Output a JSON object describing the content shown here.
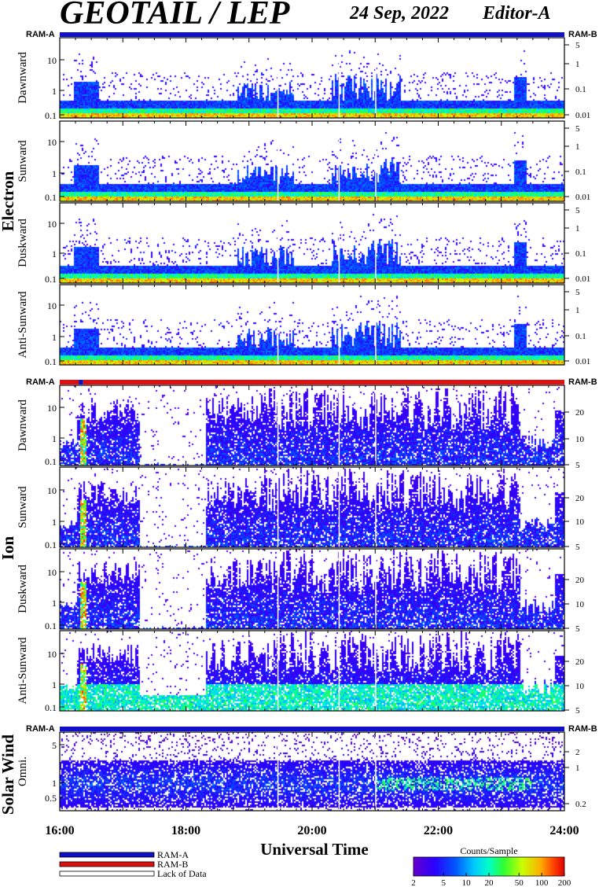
{
  "header": {
    "title": "GEOTAIL / LEP",
    "date": "24 Sep, 2022",
    "editor": "Editor-A"
  },
  "colors": {
    "ram_a": "#1010c8",
    "ram_b": "#e01010",
    "lack": "#ffffff"
  },
  "chart_data": {
    "type": "heatmap",
    "x_axis": {
      "label": "Universal Time",
      "ticks": [
        "16:00",
        "18:00",
        "20:00",
        "22:00",
        "24:00"
      ],
      "range_hours": [
        16,
        24
      ]
    },
    "groups": [
      {
        "name": "Electron",
        "mode_left": "RAM-A",
        "mode_right": "RAM-B",
        "mode_bar": [
          {
            "from": 16,
            "to": 24,
            "mode": "RAM-A"
          }
        ],
        "panels": [
          {
            "label": "Dawnward",
            "left_ticks": [
              "10",
              "1",
              "0.1"
            ],
            "right_ticks": [
              "5",
              "1",
              "0.1",
              "0.01"
            ]
          },
          {
            "label": "Sunward",
            "left_ticks": [
              "10",
              "1",
              "0.1"
            ],
            "right_ticks": [
              "5",
              "1",
              "0.1",
              "0.01"
            ]
          },
          {
            "label": "Duskward",
            "left_ticks": [
              "10",
              "1",
              "0.1"
            ],
            "right_ticks": [
              "5",
              "1",
              "0.1",
              "0.01"
            ]
          },
          {
            "label": "Anti-Sunward",
            "left_ticks": [
              "10",
              "1",
              "0.1"
            ],
            "right_ticks": [
              "5",
              "1",
              "0.1",
              "0.01"
            ]
          }
        ]
      },
      {
        "name": "Ion",
        "mode_left": "RAM-A",
        "mode_right": "RAM-B",
        "mode_bar": [
          {
            "from": 16,
            "to": 16.3,
            "mode": "RAM-B"
          },
          {
            "from": 16.3,
            "to": 16.37,
            "mode": "RAM-A"
          },
          {
            "from": 16.37,
            "to": 24,
            "mode": "RAM-B"
          }
        ],
        "panels": [
          {
            "label": "Dawnward",
            "left_ticks": [
              "10",
              "1",
              "0.1"
            ],
            "right_ticks": [
              "20",
              "10",
              "5"
            ]
          },
          {
            "label": "Sunward",
            "left_ticks": [
              "10",
              "1",
              "0.1"
            ],
            "right_ticks": [
              "20",
              "10",
              "5"
            ]
          },
          {
            "label": "Duskward",
            "left_ticks": [
              "10",
              "1",
              "0.1"
            ],
            "right_ticks": [
              "20",
              "10",
              "5"
            ]
          },
          {
            "label": "Anti-Sunward",
            "left_ticks": [
              "10",
              "1",
              "0.1"
            ],
            "right_ticks": [
              "20",
              "10",
              "5"
            ]
          }
        ]
      },
      {
        "name": "Solar Wind",
        "mode_left": "RAM-A",
        "mode_right": "RAM-B",
        "mode_bar": [
          {
            "from": 16,
            "to": 24,
            "mode": "RAM-A"
          }
        ],
        "panels": [
          {
            "label": "Omni.",
            "left_ticks": [
              "5",
              "1",
              "0.5"
            ],
            "right_ticks": [
              "2",
              "1",
              "0.2"
            ]
          }
        ]
      }
    ],
    "legend": {
      "items": [
        "RAM-A",
        "RAM-B",
        "Lack of Data"
      ]
    },
    "colorbar": {
      "title": "Counts/Sample",
      "ticks": [
        "2",
        "5",
        "10",
        "20",
        "50",
        "100",
        "200"
      ],
      "values": [
        2,
        5,
        10,
        20,
        50,
        100,
        200
      ],
      "scale": "log"
    }
  }
}
